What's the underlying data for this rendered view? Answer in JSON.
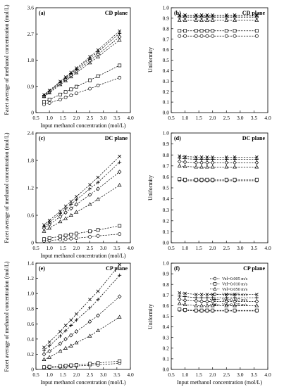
{
  "chart_data": [
    {
      "type": "line",
      "panel_label": "(a)",
      "title": "CD plane",
      "xlabel": "Input methanol concentration (mol/L)",
      "ylabel": "Facet average of methanol concentration (mol/L)",
      "xlim": [
        0.5,
        4.0
      ],
      "xticks": [
        0.5,
        1.0,
        1.5,
        2.0,
        2.5,
        3.0,
        3.5,
        4.0
      ],
      "xtick_labels": [
        "0.5",
        "1.0",
        "1.5",
        "2.0",
        "2.5",
        "3.0",
        "3.5",
        "4.0"
      ],
      "ylim": [
        0,
        3.6
      ],
      "yticks": [
        0,
        0.9,
        1.8,
        2.7,
        3.6
      ],
      "ytick_labels": [
        "0",
        "0.9",
        "1.8",
        "2.7",
        "3.6"
      ],
      "grid": false,
      "x": [
        0.8,
        1.0,
        1.4,
        1.6,
        1.8,
        2.0,
        2.5,
        2.8,
        3.6
      ],
      "series": [
        {
          "name": "Vel=0.005 m/s",
          "marker": "circle",
          "values": [
            0.28,
            0.33,
            0.45,
            0.52,
            0.59,
            0.66,
            0.82,
            0.93,
            1.2
          ]
        },
        {
          "name": "Vel=0.010 m/s",
          "marker": "square",
          "values": [
            0.37,
            0.45,
            0.62,
            0.71,
            0.8,
            0.89,
            1.11,
            1.25,
            1.62
          ]
        },
        {
          "name": "Vel=0.050 m/s",
          "marker": "triangle",
          "values": [
            0.55,
            0.68,
            0.96,
            1.09,
            1.23,
            1.37,
            1.71,
            1.92,
            2.49
          ]
        },
        {
          "name": "Vel=0.075 m/s",
          "marker": "diamond",
          "values": [
            0.57,
            0.71,
            1.0,
            1.14,
            1.28,
            1.43,
            1.79,
            2.0,
            2.6
          ]
        },
        {
          "name": "Vel=0.107 m/s",
          "marker": "plus",
          "values": [
            0.59,
            0.74,
            1.04,
            1.19,
            1.34,
            1.49,
            1.86,
            2.09,
            2.72
          ]
        },
        {
          "name": "Vel=0.125 m/s",
          "marker": "cross",
          "values": [
            0.61,
            0.76,
            1.07,
            1.22,
            1.38,
            1.53,
            1.92,
            2.15,
            2.8
          ]
        }
      ]
    },
    {
      "type": "line",
      "panel_label": "(b)",
      "title": "CD plane",
      "xlabel": "",
      "ylabel": "Uniformity",
      "xlim": [
        0.5,
        4.0
      ],
      "xticks": [
        0.5,
        1.0,
        1.5,
        2.0,
        2.5,
        3.0,
        3.5,
        4.0
      ],
      "xtick_labels": [
        "0.5",
        "1.0",
        "1.5",
        "2.0",
        "2.5",
        "3.0",
        "3.5",
        "4.0"
      ],
      "ylim": [
        0.0,
        1.0
      ],
      "yticks": [
        0.0,
        0.1,
        0.2,
        0.3,
        0.4,
        0.5,
        0.6,
        0.7,
        0.8,
        0.9,
        1.0
      ],
      "ytick_labels": [
        "0.0",
        "0.1",
        "0.2",
        "0.3",
        "0.4",
        "0.5",
        "0.6",
        "0.7",
        "0.8",
        "0.9",
        "1.0"
      ],
      "grid": false,
      "x": [
        0.8,
        1.0,
        1.4,
        1.6,
        1.8,
        2.0,
        2.5,
        2.8,
        3.6
      ],
      "series": [
        {
          "name": "Vel=0.005 m/s",
          "marker": "circle",
          "values": [
            0.73,
            0.73,
            0.73,
            0.73,
            0.73,
            0.73,
            0.73,
            0.73,
            0.73
          ]
        },
        {
          "name": "Vel=0.010 m/s",
          "marker": "square",
          "values": [
            0.78,
            0.78,
            0.78,
            0.78,
            0.78,
            0.78,
            0.78,
            0.78,
            0.78
          ]
        },
        {
          "name": "Vel=0.050 m/s",
          "marker": "triangle",
          "values": [
            0.88,
            0.88,
            0.88,
            0.88,
            0.88,
            0.88,
            0.88,
            0.88,
            0.88
          ]
        },
        {
          "name": "Vel=0.075 m/s",
          "marker": "diamond",
          "values": [
            0.91,
            0.91,
            0.91,
            0.91,
            0.91,
            0.91,
            0.91,
            0.91,
            0.91
          ]
        },
        {
          "name": "Vel=0.107 m/s",
          "marker": "plus",
          "values": [
            0.92,
            0.92,
            0.92,
            0.92,
            0.92,
            0.92,
            0.92,
            0.92,
            0.92
          ]
        },
        {
          "name": "Vel=0.125 m/s",
          "marker": "cross",
          "values": [
            0.93,
            0.93,
            0.93,
            0.93,
            0.93,
            0.93,
            0.93,
            0.93,
            0.93
          ]
        }
      ]
    },
    {
      "type": "line",
      "panel_label": "(c)",
      "title": "DC plane",
      "xlabel": "Input methanol concentration (mol/L)",
      "ylabel": "Facet average of methanol concentration (mol/L)",
      "xlim": [
        0.5,
        4.0
      ],
      "xticks": [
        0.5,
        1.0,
        1.5,
        2.0,
        2.5,
        3.0,
        3.5,
        4.0
      ],
      "xtick_labels": [
        "0.5",
        "1.0",
        "1.5",
        "2.0",
        "2.5",
        "3.0",
        "3.5",
        "4.0"
      ],
      "ylim": [
        0,
        2.4
      ],
      "yticks": [
        0,
        0.6,
        1.2,
        1.8,
        2.4
      ],
      "ytick_labels": [
        "0",
        "0.6",
        "1.2",
        "1.8",
        "2.4"
      ],
      "grid": false,
      "x": [
        0.8,
        1.0,
        1.4,
        1.6,
        1.8,
        2.0,
        2.5,
        2.8,
        3.6
      ],
      "series": [
        {
          "name": "Vel=0.005 m/s",
          "marker": "circle",
          "values": [
            0.04,
            0.05,
            0.07,
            0.08,
            0.09,
            0.1,
            0.13,
            0.15,
            0.19
          ]
        },
        {
          "name": "Vel=0.010 m/s",
          "marker": "square",
          "values": [
            0.08,
            0.1,
            0.14,
            0.16,
            0.18,
            0.2,
            0.25,
            0.28,
            0.37
          ]
        },
        {
          "name": "Vel=0.050 m/s",
          "marker": "triangle",
          "values": [
            0.25,
            0.32,
            0.46,
            0.53,
            0.6,
            0.67,
            0.84,
            0.95,
            1.26
          ]
        },
        {
          "name": "Vel=0.075 m/s",
          "marker": "diamond",
          "values": [
            0.32,
            0.4,
            0.57,
            0.66,
            0.75,
            0.84,
            1.05,
            1.18,
            1.55
          ]
        },
        {
          "name": "Vel=0.107 m/s",
          "marker": "plus",
          "values": [
            0.36,
            0.45,
            0.64,
            0.74,
            0.84,
            0.94,
            1.18,
            1.32,
            1.76
          ]
        },
        {
          "name": "Vel=0.125 m/s",
          "marker": "cross",
          "values": [
            0.39,
            0.49,
            0.69,
            0.8,
            0.9,
            1.01,
            1.27,
            1.43,
            1.89
          ]
        }
      ]
    },
    {
      "type": "line",
      "panel_label": "(d)",
      "title": "DC plane",
      "xlabel": "",
      "ylabel": "Uniformity",
      "xlim": [
        0.5,
        4.0
      ],
      "xticks": [
        0.5,
        1.0,
        1.5,
        2.0,
        2.5,
        3.0,
        3.5,
        4.0
      ],
      "xtick_labels": [
        "0.5",
        "1.0",
        "1.5",
        "2.0",
        "2.5",
        "3.0",
        "3.5",
        "4.0"
      ],
      "ylim": [
        0.0,
        1.0
      ],
      "yticks": [
        0.0,
        0.1,
        0.2,
        0.3,
        0.4,
        0.5,
        0.6,
        0.7,
        0.8,
        0.9,
        1.0
      ],
      "ytick_labels": [
        "0.0",
        "0.1",
        "0.2",
        "0.3",
        "0.4",
        "0.5",
        "0.6",
        "0.7",
        "0.8",
        "0.9",
        "1.0"
      ],
      "grid": false,
      "x": [
        0.8,
        1.0,
        1.4,
        1.6,
        1.8,
        2.0,
        2.5,
        2.8,
        3.6
      ],
      "series": [
        {
          "name": "Vel=0.005 m/s",
          "marker": "circle",
          "values": [
            0.57,
            0.565,
            0.565,
            0.565,
            0.565,
            0.565,
            0.565,
            0.565,
            0.565
          ]
        },
        {
          "name": "Vel=0.010 m/s",
          "marker": "square",
          "values": [
            0.58,
            0.575,
            0.575,
            0.575,
            0.575,
            0.575,
            0.575,
            0.575,
            0.575
          ]
        },
        {
          "name": "Vel=0.050 m/s",
          "marker": "triangle",
          "values": [
            0.7,
            0.695,
            0.69,
            0.69,
            0.69,
            0.69,
            0.69,
            0.69,
            0.69
          ]
        },
        {
          "name": "Vel=0.075 m/s",
          "marker": "diamond",
          "values": [
            0.74,
            0.735,
            0.73,
            0.73,
            0.73,
            0.73,
            0.73,
            0.73,
            0.73
          ]
        },
        {
          "name": "Vel=0.107 m/s",
          "marker": "plus",
          "values": [
            0.77,
            0.765,
            0.76,
            0.76,
            0.76,
            0.76,
            0.76,
            0.76,
            0.76
          ]
        },
        {
          "name": "Vel=0.125 m/s",
          "marker": "cross",
          "values": [
            0.79,
            0.785,
            0.78,
            0.78,
            0.78,
            0.78,
            0.78,
            0.78,
            0.78
          ]
        }
      ]
    },
    {
      "type": "line",
      "panel_label": "(e)",
      "title": "CP plane",
      "xlabel": "Input methanol concentration (mol/L)",
      "ylabel": "Facet average of methanol concentration (mol/L)",
      "xlim": [
        0.5,
        4.0
      ],
      "xticks": [
        0.5,
        1.0,
        1.5,
        2.0,
        2.5,
        3.0,
        3.5,
        4.0
      ],
      "xtick_labels": [
        "0.5",
        "1.0",
        "1.5",
        "2.0",
        "2.5",
        "3.0",
        "3.5",
        "4.0"
      ],
      "ylim": [
        0,
        1.4
      ],
      "yticks": [
        0,
        0.2,
        0.4,
        0.6,
        0.8,
        1.0,
        1.2,
        1.4
      ],
      "ytick_labels": [
        "0",
        "0.2",
        "0.4",
        "0.6",
        "0.8",
        "1.0",
        "1.2",
        "1.4"
      ],
      "grid": false,
      "x": [
        0.8,
        1.0,
        1.4,
        1.6,
        1.8,
        2.0,
        2.5,
        2.8,
        3.6
      ],
      "series": [
        {
          "name": "Vel=0.005 m/s",
          "marker": "circle",
          "values": [
            0.02,
            0.025,
            0.03,
            0.035,
            0.04,
            0.045,
            0.055,
            0.06,
            0.08
          ]
        },
        {
          "name": "Vel=0.010 m/s",
          "marker": "square",
          "values": [
            0.03,
            0.035,
            0.045,
            0.05,
            0.055,
            0.06,
            0.075,
            0.085,
            0.11
          ]
        },
        {
          "name": "Vel=0.050 m/s",
          "marker": "triangle",
          "values": [
            0.13,
            0.16,
            0.24,
            0.28,
            0.31,
            0.35,
            0.44,
            0.51,
            0.69
          ]
        },
        {
          "name": "Vel=0.075 m/s",
          "marker": "diamond",
          "values": [
            0.2,
            0.24,
            0.34,
            0.4,
            0.45,
            0.5,
            0.63,
            0.71,
            0.96
          ]
        },
        {
          "name": "Vel=0.107 m/s",
          "marker": "plus",
          "values": [
            0.25,
            0.31,
            0.44,
            0.51,
            0.58,
            0.65,
            0.81,
            0.92,
            1.24
          ]
        },
        {
          "name": "Vel=0.125 m/s",
          "marker": "cross",
          "values": [
            0.29,
            0.36,
            0.5,
            0.58,
            0.65,
            0.73,
            0.92,
            1.03,
            1.38
          ]
        }
      ]
    },
    {
      "type": "line",
      "panel_label": "(f)",
      "title": "CP plane",
      "xlabel": "Input methanol concentration (mol/L)",
      "ylabel": "Uniformity",
      "xlim": [
        0.5,
        4.0
      ],
      "xticks": [
        0.5,
        1.0,
        1.5,
        2.0,
        2.5,
        3.0,
        3.5,
        4.0
      ],
      "xtick_labels": [
        "0.5",
        "1.0",
        "1.5",
        "2.0",
        "2.5",
        "3.0",
        "3.5",
        "4.0"
      ],
      "ylim": [
        0.0,
        1.0
      ],
      "yticks": [
        0.0,
        0.1,
        0.2,
        0.3,
        0.4,
        0.5,
        0.6,
        0.7,
        0.8,
        0.9,
        1.0
      ],
      "ytick_labels": [
        "0.0",
        "0.1",
        "0.2",
        "0.3",
        "0.4",
        "0.5",
        "0.6",
        "0.7",
        "0.8",
        "0.9",
        "1.0"
      ],
      "grid": false,
      "legend": "top-right",
      "x": [
        0.8,
        1.0,
        1.4,
        1.6,
        1.8,
        2.0,
        2.5,
        2.8,
        3.6
      ],
      "series": [
        {
          "name": "Vel=0.005 m/s",
          "marker": "circle",
          "values": [
            0.56,
            0.555,
            0.55,
            0.55,
            0.55,
            0.55,
            0.55,
            0.55,
            0.55
          ]
        },
        {
          "name": "Vel=0.010 m/s",
          "marker": "square",
          "values": [
            0.565,
            0.56,
            0.555,
            0.555,
            0.555,
            0.555,
            0.555,
            0.555,
            0.555
          ]
        },
        {
          "name": "Vel=0.050 m/s",
          "marker": "triangle",
          "values": [
            0.62,
            0.61,
            0.6,
            0.6,
            0.6,
            0.6,
            0.6,
            0.6,
            0.6
          ]
        },
        {
          "name": "Vel=0.075 m/s",
          "marker": "diamond",
          "values": [
            0.66,
            0.65,
            0.645,
            0.64,
            0.64,
            0.64,
            0.64,
            0.64,
            0.64
          ]
        },
        {
          "name": "Vel=0.107 m/s",
          "marker": "plus",
          "values": [
            0.69,
            0.685,
            0.675,
            0.675,
            0.675,
            0.675,
            0.675,
            0.675,
            0.675
          ]
        },
        {
          "name": "Vel=0.125 m/s",
          "marker": "cross",
          "values": [
            0.72,
            0.715,
            0.705,
            0.705,
            0.705,
            0.705,
            0.705,
            0.705,
            0.705
          ]
        }
      ]
    }
  ]
}
